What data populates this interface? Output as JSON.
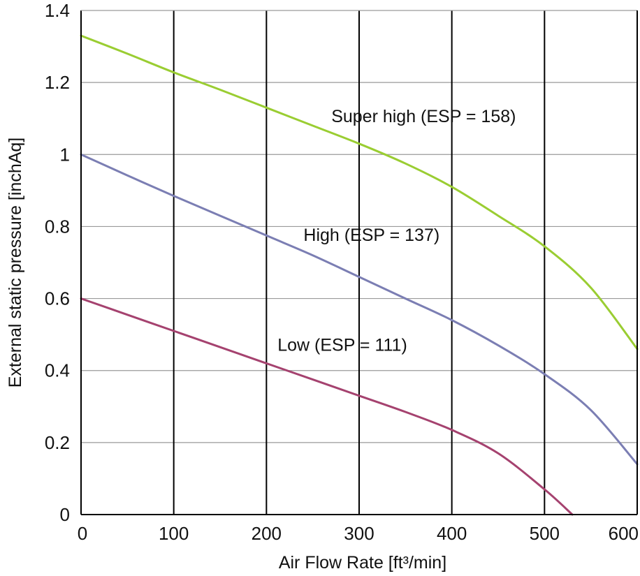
{
  "chart_data": {
    "type": "line",
    "title": "",
    "xlabel": "Air Flow Rate   [ft³/min]",
    "ylabel": "External static pressure [inchAq]",
    "xlim": [
      0,
      600
    ],
    "ylim": [
      0,
      1.4
    ],
    "x_ticks": [
      {
        "value": 0,
        "label": "0"
      },
      {
        "value": 100,
        "label": "100"
      },
      {
        "value": 200,
        "label": "200"
      },
      {
        "value": 300,
        "label": "300"
      },
      {
        "value": 400,
        "label": "400"
      },
      {
        "value": 500,
        "label": "500"
      },
      {
        "value": 600,
        "label": "600"
      }
    ],
    "y_ticks": [
      {
        "value": 0,
        "label": "0"
      },
      {
        "value": 0.2,
        "label": "0.2"
      },
      {
        "value": 0.4,
        "label": "0.4"
      },
      {
        "value": 0.6,
        "label": "0.6"
      },
      {
        "value": 0.8,
        "label": "0.8"
      },
      {
        "value": 1.0,
        "label": "1"
      },
      {
        "value": 1.2,
        "label": "1.2"
      },
      {
        "value": 1.4,
        "label": "1.4"
      }
    ],
    "grid": "on",
    "legend": "none (series labeled inline)",
    "series": [
      {
        "name": "Super high (ESP = 158)",
        "color": "#9acd32",
        "label_at": {
          "x": 270,
          "y": 1.09
        },
        "points": [
          {
            "x": 0,
            "y": 1.33
          },
          {
            "x": 50,
            "y": 1.28
          },
          {
            "x": 100,
            "y": 1.228
          },
          {
            "x": 150,
            "y": 1.18
          },
          {
            "x": 200,
            "y": 1.13
          },
          {
            "x": 250,
            "y": 1.08
          },
          {
            "x": 300,
            "y": 1.03
          },
          {
            "x": 350,
            "y": 0.975
          },
          {
            "x": 400,
            "y": 0.91
          },
          {
            "x": 450,
            "y": 0.83
          },
          {
            "x": 500,
            "y": 0.745
          },
          {
            "x": 550,
            "y": 0.63
          },
          {
            "x": 600,
            "y": 0.46
          }
        ]
      },
      {
        "name": "High (ESP = 137)",
        "color": "#7b7eb3",
        "label_at": {
          "x": 240,
          "y": 0.76
        },
        "points": [
          {
            "x": 0,
            "y": 1.0
          },
          {
            "x": 50,
            "y": 0.942
          },
          {
            "x": 100,
            "y": 0.885
          },
          {
            "x": 150,
            "y": 0.83
          },
          {
            "x": 200,
            "y": 0.775
          },
          {
            "x": 250,
            "y": 0.72
          },
          {
            "x": 300,
            "y": 0.66
          },
          {
            "x": 350,
            "y": 0.6
          },
          {
            "x": 400,
            "y": 0.54
          },
          {
            "x": 450,
            "y": 0.47
          },
          {
            "x": 500,
            "y": 0.39
          },
          {
            "x": 550,
            "y": 0.29
          },
          {
            "x": 600,
            "y": 0.14
          }
        ]
      },
      {
        "name": "Low (ESP = 111)",
        "color": "#a5426f",
        "label_at": {
          "x": 212,
          "y": 0.455
        },
        "points": [
          {
            "x": 0,
            "y": 0.6
          },
          {
            "x": 50,
            "y": 0.555
          },
          {
            "x": 100,
            "y": 0.51
          },
          {
            "x": 150,
            "y": 0.465
          },
          {
            "x": 200,
            "y": 0.42
          },
          {
            "x": 250,
            "y": 0.375
          },
          {
            "x": 300,
            "y": 0.33
          },
          {
            "x": 350,
            "y": 0.285
          },
          {
            "x": 400,
            "y": 0.235
          },
          {
            "x": 450,
            "y": 0.17
          },
          {
            "x": 500,
            "y": 0.07
          },
          {
            "x": 530,
            "y": 0.0
          }
        ]
      }
    ]
  }
}
